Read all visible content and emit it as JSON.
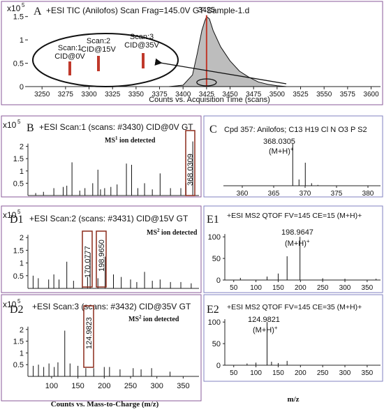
{
  "colors": {
    "panel_border": "#8a5a9a",
    "panel_border_right": "#8080c0",
    "accent": "#c0392b",
    "box": "#8b2a1a",
    "fill": "#bdbdbd",
    "line": "#222222"
  },
  "panels": {
    "A": {
      "letter": "A",
      "title": "+ESI TIC (Anilofos) Scan Frag=145.0V GT-Sample-1.d",
      "scale": "x10",
      "scale_exp": "5",
      "peak_label": "3425",
      "xlabel": "Counts vs. Acquisition Time (scans)",
      "yticks": [
        "1.5",
        "1",
        "0.5",
        "0"
      ],
      "xticks": [
        "3250",
        "3275",
        "3300",
        "3325",
        "3350",
        "3375",
        "3400",
        "3425",
        "3450",
        "3475",
        "3500",
        "3525",
        "3550",
        "3575",
        "3600"
      ],
      "callouts": [
        {
          "line1": "Scan:1",
          "line2": "CID@0V"
        },
        {
          "line1": "Scan:2",
          "line2": "CID@15V"
        },
        {
          "line1": "Scan:3",
          "line2": "CID@35V"
        }
      ]
    },
    "B": {
      "letter": "B",
      "title": "+ESI Scan:1 (scans: #3430) CID@0V GT",
      "scale": "x10",
      "scale_exp": "5",
      "yticks": [
        "2",
        "1.5",
        "1",
        "0.5"
      ],
      "note": "MS",
      "note_sup": "1",
      "note_rest": " ion detected",
      "boxed": [
        "368.0309"
      ]
    },
    "C": {
      "letter": "C",
      "title": "Cpd 357: Anilofos; C13 H19 Cl N O3 P S2",
      "peak_mz": "368.0305",
      "peak_ion": "(M+H)",
      "peak_ion_sup": "+",
      "xticks": [
        "360",
        "365",
        "370",
        "375",
        "380"
      ]
    },
    "D1": {
      "letter": "D1",
      "title": "+ESI Scan:2 (scans: #3431) CID@15V GT",
      "scale": "x10",
      "scale_exp": "5",
      "yticks": [
        "2",
        "1.5",
        "1",
        "0.5"
      ],
      "note": "MS",
      "note_sup": "2",
      "note_rest": " ion detected",
      "boxed": [
        "170.0777",
        "198.9650"
      ]
    },
    "E1": {
      "letter": "E1",
      "title": "+ESI MS2 QTOF FV=145  CE=15 (M+H)+",
      "peak_mz": "198.9647",
      "peak_ion": "(M+H)",
      "peak_ion_sup": "+",
      "yticks": [
        "100",
        "50",
        "0"
      ],
      "xticks": [
        "50",
        "100",
        "150",
        "200",
        "250",
        "300",
        "350"
      ]
    },
    "D2": {
      "letter": "D2",
      "title": "+ESI Scan:3 (scans: #3432) CID@35V GT",
      "scale": "x10",
      "scale_exp": "5",
      "yticks": [
        "2",
        "1.5",
        "1",
        "0.5"
      ],
      "note": "MS",
      "note_sup": "2",
      "note_rest": " ion detected",
      "boxed": [
        "124.9823"
      ],
      "xticks": [
        "100",
        "150",
        "200",
        "250",
        "300",
        "350"
      ],
      "xlabel": "Counts vs. Mass-to-Charge (m/z)"
    },
    "E2": {
      "letter": "E2",
      "title": "+ESI MS2 QTOF FV=145  CE=35 (M+H)+",
      "peak_mz": "124.9821",
      "peak_ion": "(M+H)",
      "peak_ion_sup": "+",
      "yticks": [
        "100",
        "50",
        "0"
      ],
      "xticks": [
        "50",
        "100",
        "150",
        "200",
        "250",
        "300",
        "350"
      ],
      "xlabel": "m/z"
    }
  },
  "chart_data": [
    {
      "panel": "A",
      "type": "area",
      "x_unit": "scans",
      "xlim": [
        3235,
        3610
      ],
      "ylim": [
        0,
        1.6
      ],
      "y_scale": "x10^5",
      "x": [
        3385,
        3400,
        3410,
        3415,
        3420,
        3423,
        3425,
        3428,
        3432,
        3440,
        3450,
        3460,
        3470,
        3480,
        3490,
        3500,
        3510
      ],
      "y": [
        0,
        0.03,
        0.25,
        0.7,
        1.2,
        1.4,
        1.5,
        1.45,
        1.2,
        0.85,
        0.55,
        0.33,
        0.2,
        0.1,
        0.05,
        0.02,
        0
      ],
      "marker_x": 3425
    },
    {
      "panel": "B",
      "type": "bar",
      "xlim": [
        50,
        380
      ],
      "ylim": [
        0,
        2.5
      ],
      "y_scale": "x10^5",
      "x": [
        65,
        80,
        100,
        118,
        125,
        135,
        150,
        160,
        175,
        185,
        190,
        198,
        210,
        222,
        240,
        250,
        262,
        275,
        290,
        305,
        325,
        345,
        355,
        368
      ],
      "values": [
        0.1,
        0.15,
        0.3,
        0.35,
        0.4,
        1.35,
        0.2,
        0.3,
        0.5,
        1.05,
        0.25,
        0.3,
        0.35,
        0.45,
        1.3,
        1.25,
        0.3,
        0.5,
        0.25,
        0.9,
        0.3,
        0.3,
        0.5,
        2.2
      ]
    },
    {
      "panel": "C",
      "type": "bar",
      "xlim": [
        357,
        382
      ],
      "ylim": [
        0,
        100
      ],
      "x": [
        368.0305,
        369.03,
        370.03,
        371.03,
        372.03
      ],
      "values": [
        100,
        15,
        55,
        6,
        2
      ]
    },
    {
      "panel": "D1",
      "type": "bar",
      "xlim": [
        50,
        380
      ],
      "ylim": [
        0,
        2.5
      ],
      "y_scale": "x10^5",
      "x": [
        60,
        70,
        90,
        100,
        110,
        125,
        138,
        155,
        165,
        170.0777,
        185,
        198.965,
        215,
        230,
        248,
        260,
        275,
        290,
        305,
        325,
        345,
        365
      ],
      "values": [
        0.5,
        0.4,
        0.35,
        0.55,
        0.35,
        1.05,
        0.3,
        0.35,
        0.45,
        1.4,
        0.4,
        1.25,
        0.55,
        0.45,
        0.35,
        0.25,
        0.65,
        0.3,
        0.35,
        0.25,
        0.25,
        0.2
      ]
    },
    {
      "panel": "E1",
      "type": "bar",
      "xlim": [
        30,
        380
      ],
      "ylim": [
        0,
        110
      ],
      "x": [
        65,
        125,
        150,
        170,
        198.9647,
        250,
        300,
        370
      ],
      "values": [
        5,
        8,
        15,
        55,
        100,
        4,
        3,
        3
      ]
    },
    {
      "panel": "D2",
      "type": "bar",
      "xlim": [
        55,
        380
      ],
      "ylim": [
        0,
        2.5
      ],
      "y_scale": "x10^5",
      "x": [
        65,
        75,
        85,
        95,
        105,
        112,
        124.9823,
        135,
        150,
        165,
        180,
        200,
        210,
        230,
        255,
        270,
        290,
        325
      ],
      "values": [
        0.45,
        0.5,
        0.4,
        0.55,
        0.4,
        0.6,
        1.95,
        0.55,
        0.45,
        0.35,
        0.35,
        0.4,
        0.4,
        0.3,
        0.35,
        0.3,
        0.35,
        0.2
      ]
    },
    {
      "panel": "E2",
      "type": "bar",
      "xlim": [
        30,
        380
      ],
      "ylim": [
        0,
        110
      ],
      "x": [
        80,
        100,
        124.9821,
        135,
        150,
        170
      ],
      "values": [
        4,
        6,
        100,
        8,
        5,
        10
      ]
    }
  ]
}
